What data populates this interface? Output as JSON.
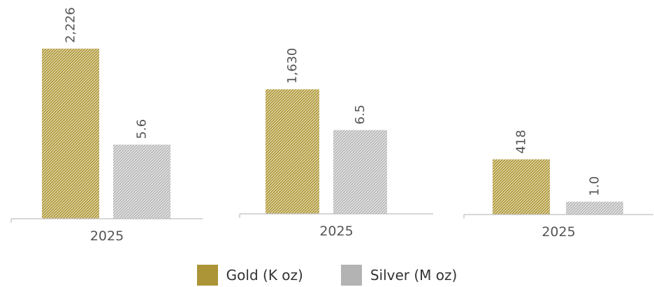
{
  "colors": {
    "gold": "#ab9536",
    "gold_light": "#e8dfb8",
    "silver": "#b3b3b3",
    "silver_light": "#eeeeee",
    "axis": "#bfbfbf",
    "label": "#555555"
  },
  "legend": [
    {
      "label": "Gold (K oz)"
    },
    {
      "label": "Silver (M oz)"
    }
  ],
  "chart_data": [
    {
      "type": "bar",
      "categories": [
        "2025"
      ],
      "series": [
        {
          "name": "Gold (K oz)",
          "values": [
            2226
          ]
        },
        {
          "name": "Silver (M oz)",
          "values": [
            5.6
          ]
        }
      ],
      "data_labels": [
        "2,226",
        "5.6"
      ],
      "title": "",
      "xlabel": "",
      "ylabel": ""
    },
    {
      "type": "bar",
      "categories": [
        "2025"
      ],
      "series": [
        {
          "name": "Gold (K oz)",
          "values": [
            1630
          ]
        },
        {
          "name": "Silver (M oz)",
          "values": [
            6.5
          ]
        }
      ],
      "data_labels": [
        "1,630",
        "6.5"
      ],
      "title": "",
      "xlabel": "",
      "ylabel": ""
    },
    {
      "type": "bar",
      "categories": [
        "2025"
      ],
      "series": [
        {
          "name": "Gold (K oz)",
          "values": [
            418
          ]
        },
        {
          "name": "Silver (M oz)",
          "values": [
            1.0
          ]
        }
      ],
      "data_labels": [
        "418",
        "1.0"
      ],
      "title": "",
      "xlabel": "",
      "ylabel": ""
    }
  ]
}
